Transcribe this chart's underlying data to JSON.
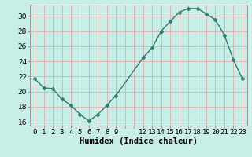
{
  "x": [
    0,
    1,
    2,
    3,
    4,
    5,
    6,
    7,
    8,
    9,
    12,
    13,
    14,
    15,
    16,
    17,
    18,
    19,
    20,
    21,
    22,
    23
  ],
  "y": [
    21.7,
    20.5,
    20.4,
    19.0,
    18.2,
    17.0,
    16.1,
    17.0,
    18.2,
    19.5,
    24.5,
    25.8,
    28.0,
    29.3,
    30.5,
    31.0,
    31.0,
    30.3,
    29.5,
    27.5,
    24.2,
    21.7
  ],
  "line_color": "#2e7d6e",
  "marker": "D",
  "marker_size": 2.5,
  "bg_color": "#c8eee8",
  "grid_color_major": "#e8a0a0",
  "grid_color_minor": "#e8c8c8",
  "xlabel": "Humidex (Indice chaleur)",
  "ylim": [
    15.5,
    31.5
  ],
  "yticks": [
    16,
    18,
    20,
    22,
    24,
    26,
    28,
    30
  ],
  "xlabel_fontsize": 7.5,
  "tick_fontsize": 6.5,
  "line_width": 1.0
}
